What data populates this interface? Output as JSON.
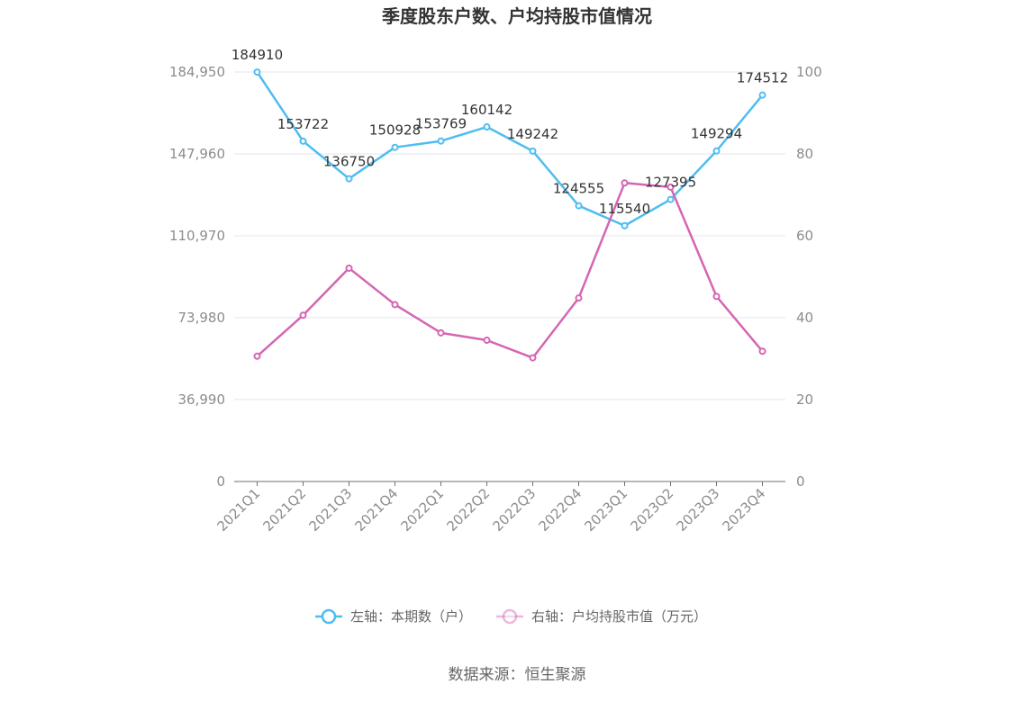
{
  "chart_data": {
    "type": "line",
    "title": "季度股东户数、户均持股市值情况",
    "categories": [
      "2021Q1",
      "2021Q2",
      "2021Q3",
      "2021Q4",
      "2022Q1",
      "2022Q2",
      "2022Q3",
      "2022Q4",
      "2023Q1",
      "2023Q2",
      "2023Q3",
      "2023Q4"
    ],
    "series": [
      {
        "name": "左轴：本期数（户）",
        "axis": "left",
        "color": "#4fbdf0",
        "values": [
          184910,
          153722,
          136750,
          150928,
          153769,
          160142,
          149242,
          124555,
          115540,
          127395,
          149294,
          174512
        ],
        "show_labels": true
      },
      {
        "name": "右轴：户均持股市值（万元）",
        "axis": "right",
        "color": "#d466b2",
        "values": [
          30.6,
          40.6,
          52.1,
          43.2,
          36.3,
          34.5,
          30.2,
          44.8,
          72.9,
          71.9,
          45.2,
          31.8
        ],
        "show_labels": false
      }
    ],
    "y_left": {
      "ticks": [
        0,
        36990,
        73980,
        110970,
        147960,
        184950
      ],
      "tick_labels": [
        "0",
        "36,990",
        "73,980",
        "110,970",
        "147,960",
        "184,950"
      ],
      "ylim": [
        0,
        184950
      ]
    },
    "y_right": {
      "ticks": [
        0,
        20,
        40,
        60,
        80,
        100
      ],
      "tick_labels": [
        "0",
        "20",
        "40",
        "60",
        "80",
        "100"
      ],
      "ylim": [
        0,
        100
      ]
    },
    "grid": true,
    "legend_position": "bottom-center"
  },
  "source": "数据来源：恒生聚源"
}
